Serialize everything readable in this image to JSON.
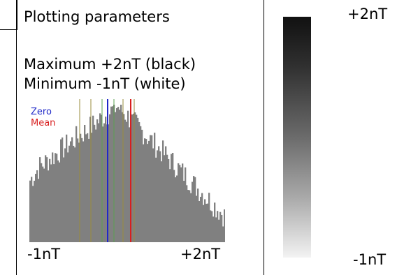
{
  "panel": {
    "title": "Plotting parameters",
    "maximum_label": "Maximum +2nT (black)",
    "minimum_label": "Minimum -1nT (white)"
  },
  "histogram": {
    "legend": {
      "zero": "Zero",
      "mean": "Mean"
    },
    "x_min_label": "-1nT",
    "x_max_label": "+2nT",
    "colors": {
      "bars": "#808080",
      "zero": "#1f28c8",
      "mean": "#d81e1e",
      "grid_a": "#9a8c3c",
      "grid_b": "#5aa050"
    }
  },
  "scale": {
    "top_label": "+2nT",
    "bottom_label": "-1nT",
    "colors": {
      "dark": "#111111",
      "light": "#f3f3f3"
    }
  }
}
